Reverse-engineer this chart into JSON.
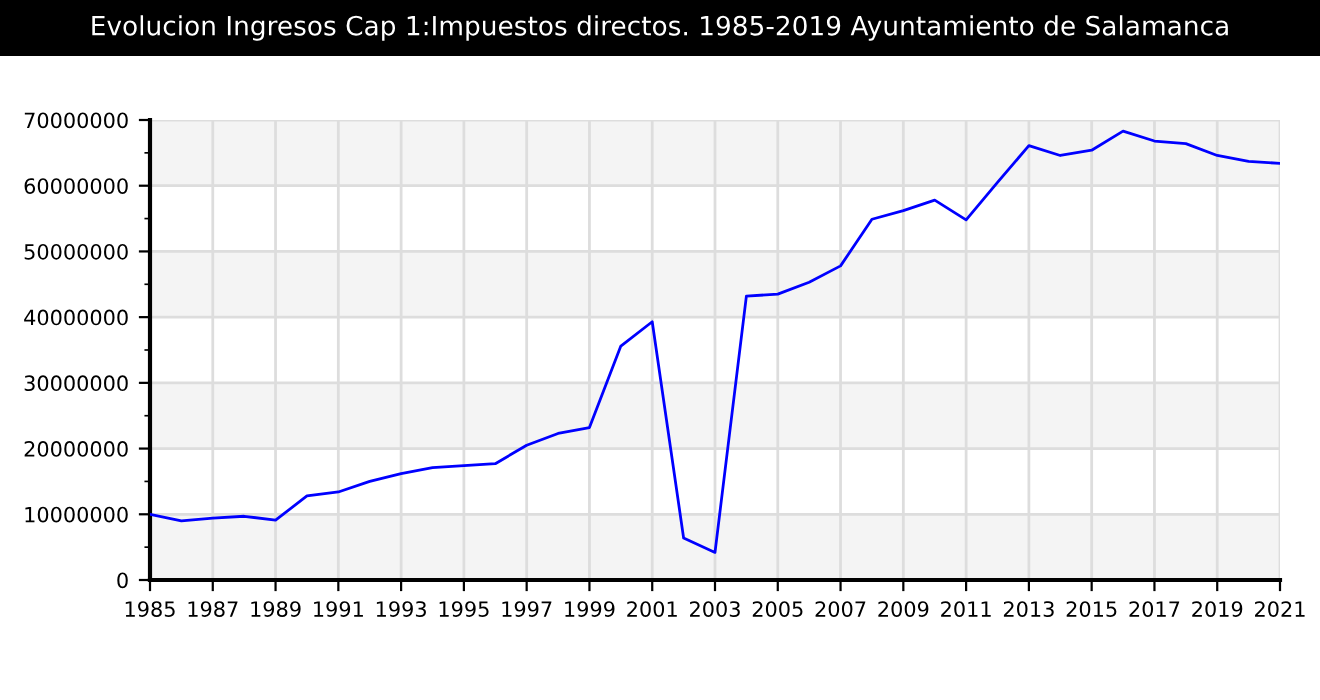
{
  "chart_data": {
    "type": "line",
    "title": "Evolucion Ingresos Cap 1:Impuestos directos. 1985-2019 Ayuntamiento de Salamanca",
    "x": [
      1985,
      1986,
      1987,
      1988,
      1989,
      1990,
      1991,
      1992,
      1993,
      1994,
      1995,
      1996,
      1997,
      1998,
      1999,
      2000,
      2001,
      2002,
      2003,
      2004,
      2005,
      2006,
      2007,
      2008,
      2009,
      2010,
      2011,
      2012,
      2013,
      2014,
      2015,
      2016,
      2017,
      2018,
      2019,
      2020,
      2021
    ],
    "series": [
      {
        "color": "#0000ff",
        "values": [
          10000000,
          9000000,
          9400000,
          9700000,
          9100000,
          12800000,
          13400000,
          15000000,
          16200000,
          17100000,
          17400000,
          17700000,
          20500000,
          22300000,
          23200000,
          35600000,
          39300000,
          6400000,
          4200000,
          43200000,
          43500000,
          45300000,
          47800000,
          54900000,
          56200000,
          57800000,
          54800000,
          60500000,
          66100000,
          64600000,
          65400000,
          68300000,
          66800000,
          66400000,
          64600000,
          63700000,
          63400000
        ]
      }
    ],
    "xlim": [
      1985,
      2021
    ],
    "xticks": [
      1985,
      1987,
      1989,
      1991,
      1993,
      1995,
      1997,
      1999,
      2001,
      2003,
      2005,
      2007,
      2009,
      2011,
      2013,
      2015,
      2017,
      2019,
      2021
    ],
    "ylim": [
      0,
      70000000
    ],
    "yticks": [
      0,
      10000000,
      20000000,
      30000000,
      40000000,
      50000000,
      60000000,
      70000000
    ],
    "bands": [
      {
        "axis": "y",
        "from": 0,
        "to": 10000000,
        "color": "#f4f4f4"
      },
      {
        "axis": "y",
        "from": 20000000,
        "to": 30000000,
        "color": "#f4f4f4"
      },
      {
        "axis": "y",
        "from": 40000000,
        "to": 50000000,
        "color": "#f4f4f4"
      },
      {
        "axis": "y",
        "from": 60000000,
        "to": 70000000,
        "color": "#f4f4f4"
      }
    ],
    "grid": true,
    "marker": "none",
    "line_style": "solid"
  }
}
